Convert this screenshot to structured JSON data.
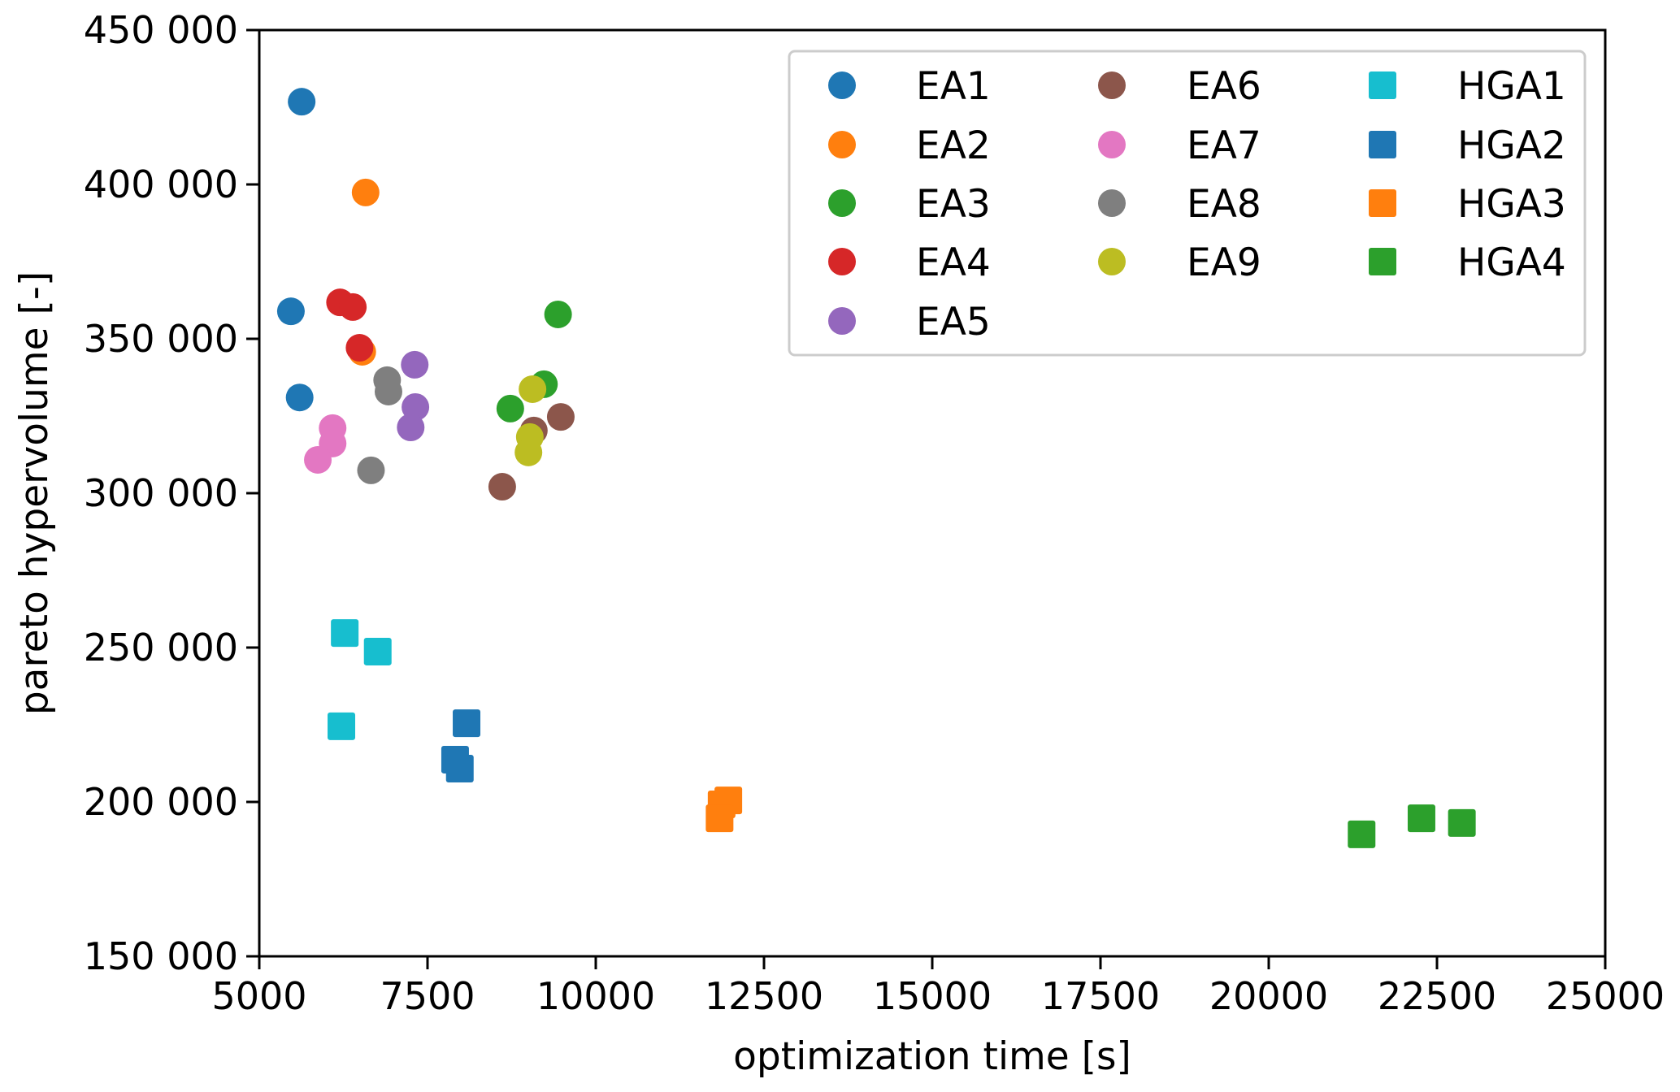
{
  "chart_data": {
    "type": "scatter",
    "title": "",
    "xlabel": "optimization time [s]",
    "ylabel": "pareto hypervolume [-]",
    "xlim": [
      5000,
      25000
    ],
    "ylim": [
      150000,
      450000
    ],
    "xticks": [
      5000,
      7500,
      10000,
      12500,
      15000,
      17500,
      20000,
      22500,
      25000
    ],
    "xtick_labels": [
      "5000",
      "7500",
      "10000",
      "12500",
      "15000",
      "17500",
      "20000",
      "22500",
      "25000"
    ],
    "yticks": [
      150000,
      200000,
      250000,
      300000,
      350000,
      400000,
      450000
    ],
    "ytick_labels": [
      "150 000",
      "200 000",
      "250 000",
      "300 000",
      "350 000",
      "400 000",
      "450 000"
    ],
    "grid": false,
    "legend_position": "top-right",
    "legend_columns": 3,
    "series": [
      {
        "name": "EA1",
        "marker": "circle",
        "color": "#1f77b4",
        "points": [
          [
            5630,
            426800
          ],
          [
            5470,
            358900
          ],
          [
            5600,
            331000
          ]
        ]
      },
      {
        "name": "EA2",
        "marker": "circle",
        "color": "#ff7f0e",
        "points": [
          [
            6580,
            397400
          ],
          [
            6530,
            345800
          ]
        ]
      },
      {
        "name": "EA3",
        "marker": "circle",
        "color": "#2ca02c",
        "points": [
          [
            9440,
            357900
          ],
          [
            9230,
            335300
          ],
          [
            8730,
            327400
          ]
        ]
      },
      {
        "name": "EA4",
        "marker": "circle",
        "color": "#d62728",
        "points": [
          [
            6200,
            361800
          ],
          [
            6390,
            360300
          ],
          [
            6490,
            347100
          ]
        ]
      },
      {
        "name": "EA5",
        "marker": "circle",
        "color": "#9467bd",
        "points": [
          [
            7310,
            341600
          ],
          [
            7320,
            327900
          ],
          [
            7250,
            321300
          ]
        ]
      },
      {
        "name": "EA6",
        "marker": "circle",
        "color": "#8c564b",
        "points": [
          [
            9480,
            324700
          ],
          [
            9080,
            320300
          ],
          [
            8610,
            302100
          ]
        ]
      },
      {
        "name": "EA7",
        "marker": "circle",
        "color": "#e377c2",
        "points": [
          [
            6090,
            321100
          ],
          [
            6090,
            316100
          ],
          [
            5870,
            310800
          ]
        ]
      },
      {
        "name": "EA8",
        "marker": "circle",
        "color": "#7f7f7f",
        "points": [
          [
            6900,
            336600
          ],
          [
            6920,
            332900
          ],
          [
            6660,
            307400
          ]
        ]
      },
      {
        "name": "EA9",
        "marker": "circle",
        "color": "#bcbd22",
        "points": [
          [
            9060,
            333700
          ],
          [
            9020,
            318200
          ],
          [
            9000,
            313200
          ]
        ]
      },
      {
        "name": "HGA1",
        "marker": "square",
        "color": "#17becf",
        "points": [
          [
            6270,
            254700
          ],
          [
            6760,
            248700
          ],
          [
            6220,
            224500
          ]
        ]
      },
      {
        "name": "HGA2",
        "marker": "square",
        "color": "#1f77b4",
        "points": [
          [
            8080,
            225500
          ],
          [
            7910,
            213700
          ],
          [
            7980,
            210800
          ]
        ]
      },
      {
        "name": "HGA3",
        "marker": "square",
        "color": "#ff7f0e",
        "points": [
          [
            11970,
            200500
          ],
          [
            11870,
            199200
          ],
          [
            11840,
            194700
          ]
        ]
      },
      {
        "name": "HGA4",
        "marker": "square",
        "color": "#2ca02c",
        "points": [
          [
            21380,
            189500
          ],
          [
            22270,
            194700
          ],
          [
            22870,
            193200
          ]
        ]
      }
    ]
  }
}
